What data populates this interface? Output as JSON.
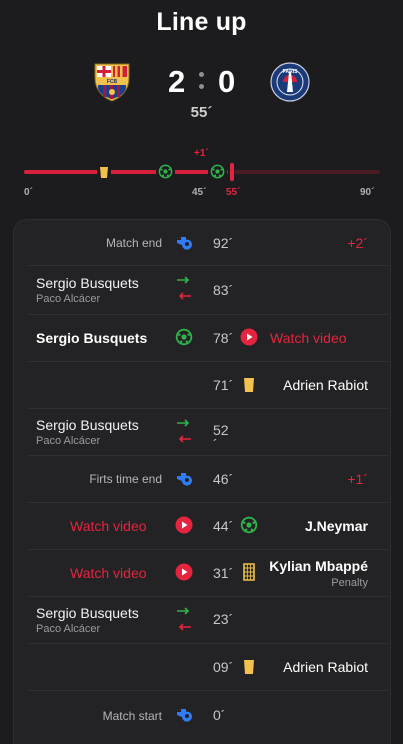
{
  "header": {
    "title": "Line up"
  },
  "match": {
    "home_score": "2",
    "away_score": "0",
    "minute": "55´",
    "home_crest_text": "FCB",
    "away_crest_text": "PARIS"
  },
  "timeline": {
    "extra_label": "+1´",
    "ticks": [
      "0´",
      "45´",
      "55´",
      "90´"
    ],
    "current_minute": 55,
    "events": [
      {
        "minute": 17,
        "icon": "yellow-card-icon"
      },
      {
        "minute": 31,
        "icon": "ball-icon"
      },
      {
        "minute": 44,
        "icon": "ball-icon"
      }
    ]
  },
  "events": [
    {
      "type": "status",
      "label": "Match end",
      "minute": "92´",
      "extra": "+2´"
    },
    {
      "type": "sub",
      "player_in": "Sergio Busquets",
      "player_out": "Paco Alcácer",
      "minute": "83´"
    },
    {
      "type": "goal-home",
      "player": "Sergio Busquets",
      "minute": "78´",
      "action": "Watch video"
    },
    {
      "type": "card-away",
      "player": "Adrien Rabiot",
      "minute": "71´"
    },
    {
      "type": "sub",
      "player_in": "Sergio Busquets",
      "player_out": "Paco Alcácer",
      "minute": "52",
      "minute_tail": "´"
    },
    {
      "type": "status",
      "label": "Firts time end",
      "minute": "46´",
      "extra": "+1´"
    },
    {
      "type": "goal-away",
      "player": "J.Neymar",
      "minute": "44´",
      "action": "Watch video"
    },
    {
      "type": "penalty-away",
      "player": "Kylian Mbappé",
      "sub": "Penalty",
      "minute": "31´",
      "action": "Watch video"
    },
    {
      "type": "sub",
      "player_in": "Sergio Busquets",
      "player_out": "Paco Alcácer",
      "minute": "23´"
    },
    {
      "type": "card-away",
      "player": "Adrien Rabiot",
      "minute": "09´"
    },
    {
      "type": "status",
      "label": "Match start",
      "minute": "0´"
    }
  ],
  "colors": {
    "background": "#1c1c1e",
    "panel": "#232325",
    "accent_red": "#e5243f",
    "goal_green": "#2fb34a",
    "whistle_blue": "#2f7cf6",
    "card_yellow": "#f2c14e"
  }
}
